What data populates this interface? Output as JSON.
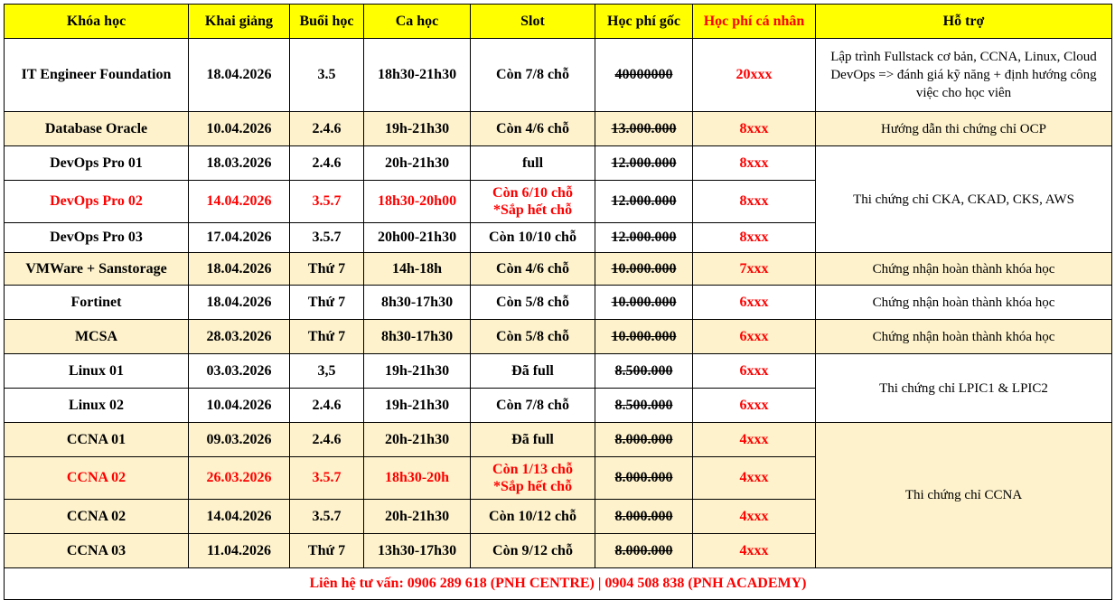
{
  "headers": {
    "course": "Khóa học",
    "start": "Khai giảng",
    "days": "Buổi học",
    "shift": "Ca học",
    "slot": "Slot",
    "orig_fee": "Học phí gốc",
    "personal_fee": "Học phí cá nhân",
    "support": "Hỗ trợ"
  },
  "rows": [
    {
      "course": "IT Engineer Foundation",
      "start": "18.04.2026",
      "days": "3.5",
      "shift": "18h30-21h30",
      "slot": "Còn 7/8 chỗ",
      "orig_fee": "40000000",
      "personal_fee": "20xxx"
    },
    {
      "course": "Database Oracle",
      "start": "10.04.2026",
      "days": "2.4.6",
      "shift": "19h-21h30",
      "slot": "Còn 4/6 chỗ",
      "orig_fee": "13.000.000",
      "personal_fee": "8xxx"
    },
    {
      "course": "DevOps Pro 01",
      "start": "18.03.2026",
      "days": "2.4.6",
      "shift": "20h-21h30",
      "slot": "full",
      "orig_fee": "12.000.000",
      "personal_fee": "8xxx"
    },
    {
      "course": "DevOps Pro 02",
      "start": "14.04.2026",
      "days": "3.5.7",
      "shift": "18h30-20h00",
      "slot": "Còn 6/10 chỗ",
      "slot_note": "*Sắp hết chỗ",
      "orig_fee": "12.000.000",
      "personal_fee": "8xxx"
    },
    {
      "course": "DevOps Pro 03",
      "start": "17.04.2026",
      "days": "3.5.7",
      "shift": "20h00-21h30",
      "slot": "Còn 10/10 chỗ",
      "orig_fee": "12.000.000",
      "personal_fee": "8xxx"
    },
    {
      "course": "VMWare + Sanstorage",
      "start": "18.04.2026",
      "days": "Thứ 7",
      "shift": "14h-18h",
      "slot": "Còn 4/6 chỗ",
      "orig_fee": "10.000.000",
      "personal_fee": "7xxx"
    },
    {
      "course": "Fortinet",
      "start": "18.04.2026",
      "days": "Thứ 7",
      "shift": "8h30-17h30",
      "slot": "Còn 5/8 chỗ",
      "orig_fee": "10.000.000",
      "personal_fee": "6xxx"
    },
    {
      "course": "MCSA",
      "start": "28.03.2026",
      "days": "Thứ 7",
      "shift": "8h30-17h30",
      "slot": "Còn 5/8 chỗ",
      "orig_fee": "10.000.000",
      "personal_fee": "6xxx"
    },
    {
      "course": "Linux 01",
      "start": "03.03.2026",
      "days": "3,5",
      "shift": "19h-21h30",
      "slot": "Đã full",
      "orig_fee": "8.500.000",
      "personal_fee": "6xxx"
    },
    {
      "course": "Linux 02",
      "start": "10.04.2026",
      "days": "2.4.6",
      "shift": "19h-21h30",
      "slot": "Còn 7/8 chỗ",
      "orig_fee": "8.500.000",
      "personal_fee": "6xxx"
    },
    {
      "course": "CCNA 01",
      "start": "09.03.2026",
      "days": "2.4.6",
      "shift": "20h-21h30",
      "slot": "Đã full",
      "orig_fee": "8.000.000",
      "personal_fee": "4xxx"
    },
    {
      "course": "CCNA 02",
      "start": "26.03.2026",
      "days": "3.5.7",
      "shift": "18h30-20h",
      "slot": "Còn 1/13 chỗ",
      "slot_note": "*Sắp hết chỗ",
      "orig_fee": "8.000.000",
      "personal_fee": "4xxx"
    },
    {
      "course": "CCNA 02",
      "start": "14.04.2026",
      "days": "3.5.7",
      "shift": "20h-21h30",
      "slot": "Còn 10/12 chỗ",
      "orig_fee": "8.000.000",
      "personal_fee": "4xxx"
    },
    {
      "course": "CCNA 03",
      "start": "11.04.2026",
      "days": "Thứ 7",
      "shift": "13h30-17h30",
      "slot": "Còn 9/12 chỗ",
      "orig_fee": "8.000.000",
      "personal_fee": "4xxx"
    }
  ],
  "support": {
    "it_foundation": "Lập trình Fullstack cơ bản, CCNA, Linux, Cloud DevOps => đánh giá kỹ năng + định hướng công việc cho học viên",
    "oracle": "Hướng dẫn thi chứng chỉ OCP",
    "devops": "Thi chứng chỉ CKA, CKAD, CKS, AWS",
    "vmware": "Chứng nhận hoàn thành khóa học",
    "fortinet": "Chứng nhận hoàn thành khóa học",
    "mcsa": "Chứng nhận hoàn thành khóa học",
    "linux": "Thi chứng chỉ LPIC1 & LPIC2",
    "ccna": "Thi chứng chỉ CCNA"
  },
  "footer": "Liên hệ tư vấn: 0906 289 618 (PNH CENTRE) | 0904 508 838 (PNH ACADEMY)",
  "colors": {
    "header_bg": "#ffff00",
    "alt_row_bg": "#fdf2cc",
    "highlight_text": "#ff0000"
  }
}
